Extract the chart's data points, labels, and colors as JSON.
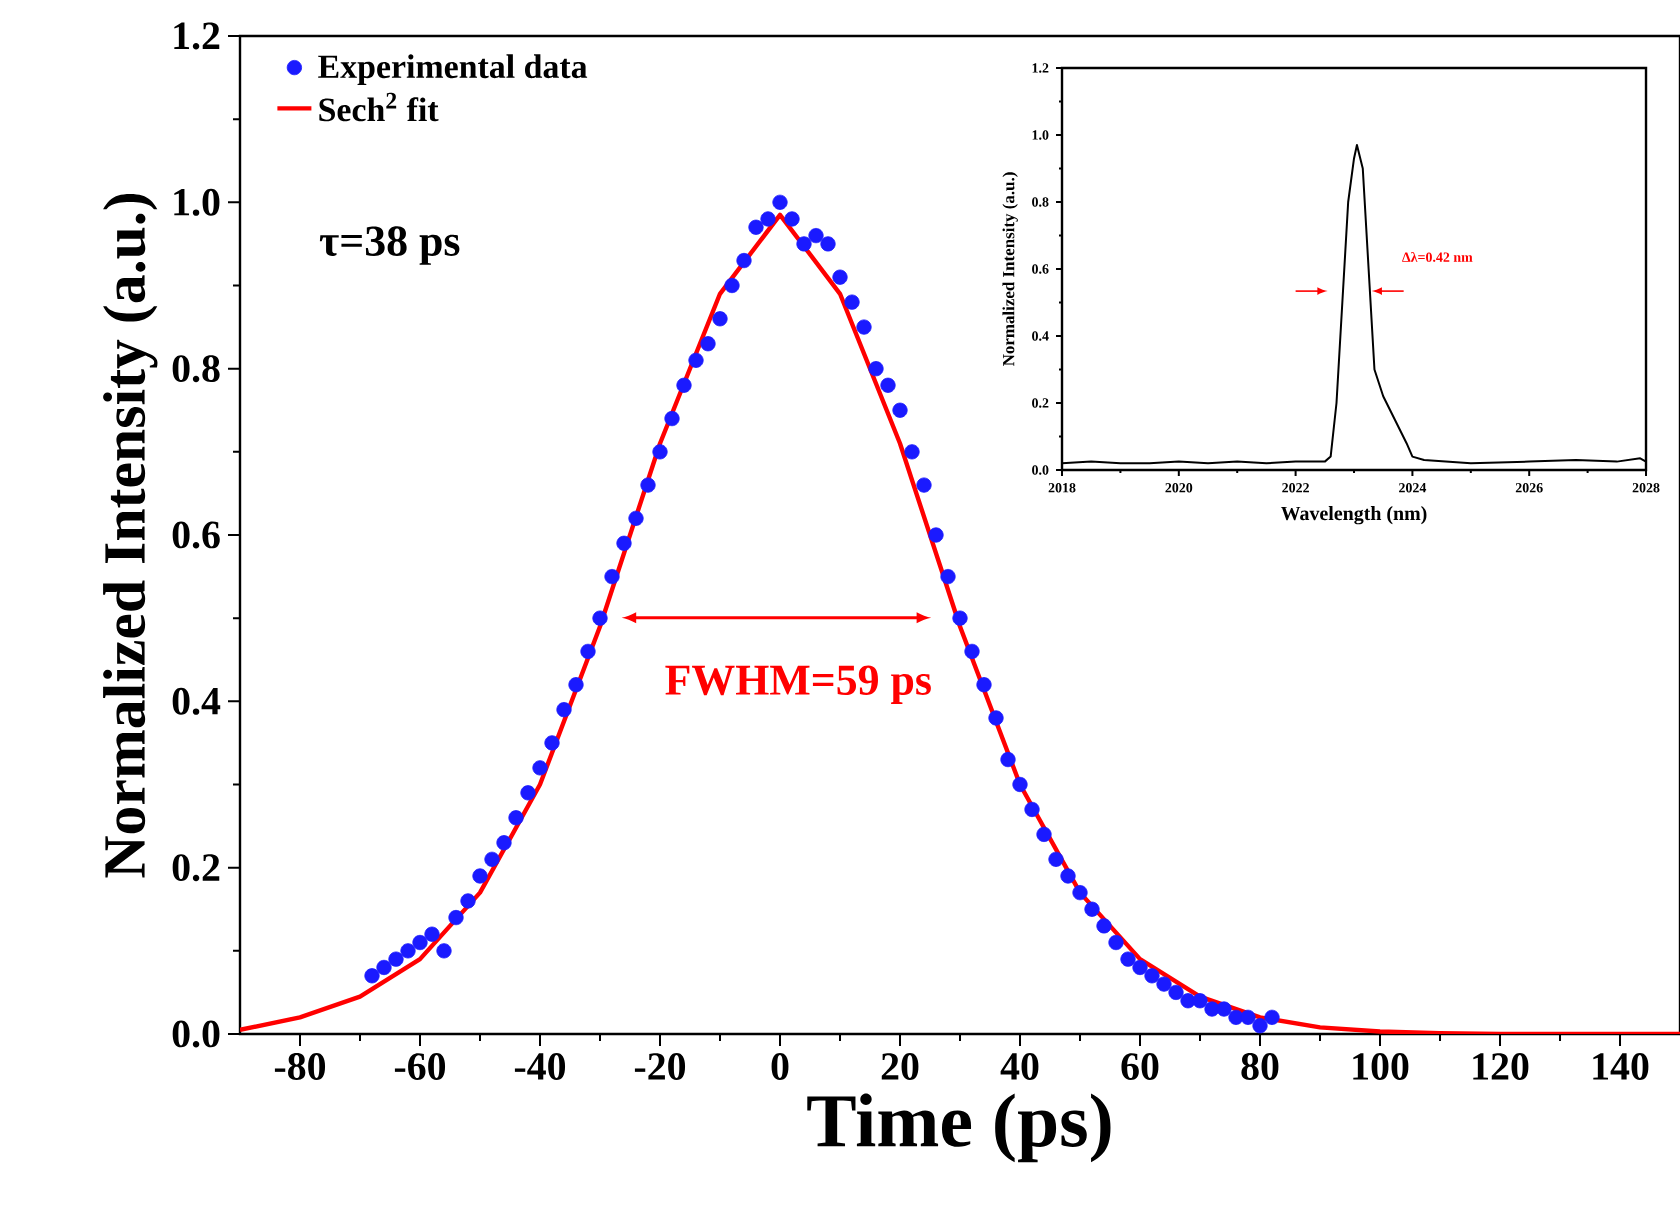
{
  "chart_data": [
    {
      "type": "scatter",
      "xlabel": "Time (ps)",
      "ylabel": "Normalized Intensity (a.u.)",
      "xlim": [
        -90,
        150
      ],
      "ylim": [
        0,
        1.2
      ],
      "xticks": [
        -80,
        -60,
        -40,
        -20,
        0,
        20,
        40,
        60,
        80,
        100,
        120,
        140
      ],
      "yticks": [
        {
          "value": 0,
          "label": "0.0"
        },
        {
          "value": 0.2,
          "label": "0.2"
        },
        {
          "value": 0.4,
          "label": "0.4"
        },
        {
          "value": 0.6,
          "label": "0.6"
        },
        {
          "value": 0.8,
          "label": "0.8"
        },
        {
          "value": 1.0,
          "label": "1.0"
        },
        {
          "value": 1.2,
          "label": "1.2"
        }
      ],
      "legend": "top left",
      "series": [
        {
          "name": "Experimental data",
          "type": "scatter",
          "marker": "circle",
          "color": "#1a1aff",
          "x": [
            -68,
            -66,
            -64,
            -62,
            -60,
            -58,
            -56,
            -54,
            -52,
            -50,
            -48,
            -46,
            -44,
            -42,
            -40,
            -38,
            -36,
            -34,
            -32,
            -30,
            -28,
            -26,
            -24,
            -22,
            -20,
            -18,
            -16,
            -14,
            -12,
            -10,
            -8,
            -6,
            -4,
            -2,
            0,
            2,
            4,
            6,
            8,
            10,
            12,
            14,
            16,
            18,
            20,
            22,
            24,
            26,
            28,
            30,
            32,
            34,
            36,
            38,
            40,
            42,
            44,
            46,
            48,
            50,
            52,
            54,
            56,
            58,
            60,
            62,
            64,
            66,
            68,
            70,
            72,
            74,
            76,
            78,
            80,
            82
          ],
          "values": [
            0.07,
            0.08,
            0.09,
            0.1,
            0.11,
            0.12,
            0.1,
            0.14,
            0.16,
            0.19,
            0.21,
            0.23,
            0.26,
            0.29,
            0.32,
            0.35,
            0.39,
            0.42,
            0.46,
            0.5,
            0.55,
            0.59,
            0.62,
            0.66,
            0.7,
            0.74,
            0.78,
            0.81,
            0.83,
            0.86,
            0.9,
            0.93,
            0.97,
            0.98,
            1.0,
            0.98,
            0.95,
            0.96,
            0.95,
            0.91,
            0.88,
            0.85,
            0.8,
            0.78,
            0.75,
            0.7,
            0.66,
            0.6,
            0.55,
            0.5,
            0.46,
            0.42,
            0.38,
            0.33,
            0.3,
            0.27,
            0.24,
            0.21,
            0.19,
            0.17,
            0.15,
            0.13,
            0.11,
            0.09,
            0.08,
            0.07,
            0.06,
            0.05,
            0.04,
            0.04,
            0.03,
            0.03,
            0.02,
            0.02,
            0.01,
            0.02
          ]
        },
        {
          "name": "Sech$^{2}$ fit",
          "type": "line",
          "marker": "none",
          "color": "#ff0000",
          "x": [
            -90,
            -80,
            -70,
            -60,
            -50,
            -40,
            -30,
            -20,
            -10,
            0,
            10,
            20,
            30,
            40,
            50,
            60,
            70,
            80,
            90,
            100,
            110,
            120,
            150
          ],
          "values": [
            0.005,
            0.02,
            0.045,
            0.09,
            0.17,
            0.3,
            0.49,
            0.71,
            0.89,
            0.985,
            0.89,
            0.71,
            0.49,
            0.3,
            0.17,
            0.09,
            0.045,
            0.02,
            0.008,
            0.003,
            0.001,
            0,
            0
          ]
        }
      ],
      "annotations": [
        "τ=38 ps",
        "FWHM=59 ps"
      ]
    },
    {
      "type": "line",
      "xlabel": "Wavelength (nm)",
      "ylabel": "Normalized Intensity (a.u.)",
      "xlim": [
        2018,
        2028
      ],
      "ylim": [
        0,
        1.2
      ],
      "xticks": [
        2018,
        2020,
        2022,
        2024,
        2026,
        2028
      ],
      "yticks": [
        {
          "value": 0,
          "label": "0.0"
        },
        {
          "value": 0.2,
          "label": "0.2"
        },
        {
          "value": 0.4,
          "label": "0.4"
        },
        {
          "value": 0.6,
          "label": "0.6"
        },
        {
          "value": 0.8,
          "label": "0.8"
        },
        {
          "value": 1.0,
          "label": "1.0"
        },
        {
          "value": 1.2,
          "label": "1.2"
        }
      ],
      "series": [
        {
          "color": "#000000",
          "x": [
            2018,
            2018.5,
            2019,
            2019.5,
            2020,
            2020.5,
            2021,
            2021.5,
            2022,
            2022.5,
            2022.6,
            2022.7,
            2022.8,
            2022.9,
            2023.0,
            2023.05,
            2023.15,
            2023.25,
            2023.35,
            2023.5,
            2023.7,
            2023.9,
            2024.0,
            2024.2,
            2025,
            2026,
            2026.8,
            2027.5,
            2027.9,
            2028
          ],
          "values": [
            0.02,
            0.025,
            0.02,
            0.02,
            0.025,
            0.02,
            0.025,
            0.02,
            0.025,
            0.025,
            0.04,
            0.2,
            0.5,
            0.8,
            0.93,
            0.97,
            0.9,
            0.6,
            0.3,
            0.22,
            0.15,
            0.08,
            0.04,
            0.03,
            0.02,
            0.025,
            0.03,
            0.025,
            0.035,
            0.025
          ]
        }
      ],
      "annotations": [
        "Δλ=0.42 nm"
      ]
    }
  ]
}
